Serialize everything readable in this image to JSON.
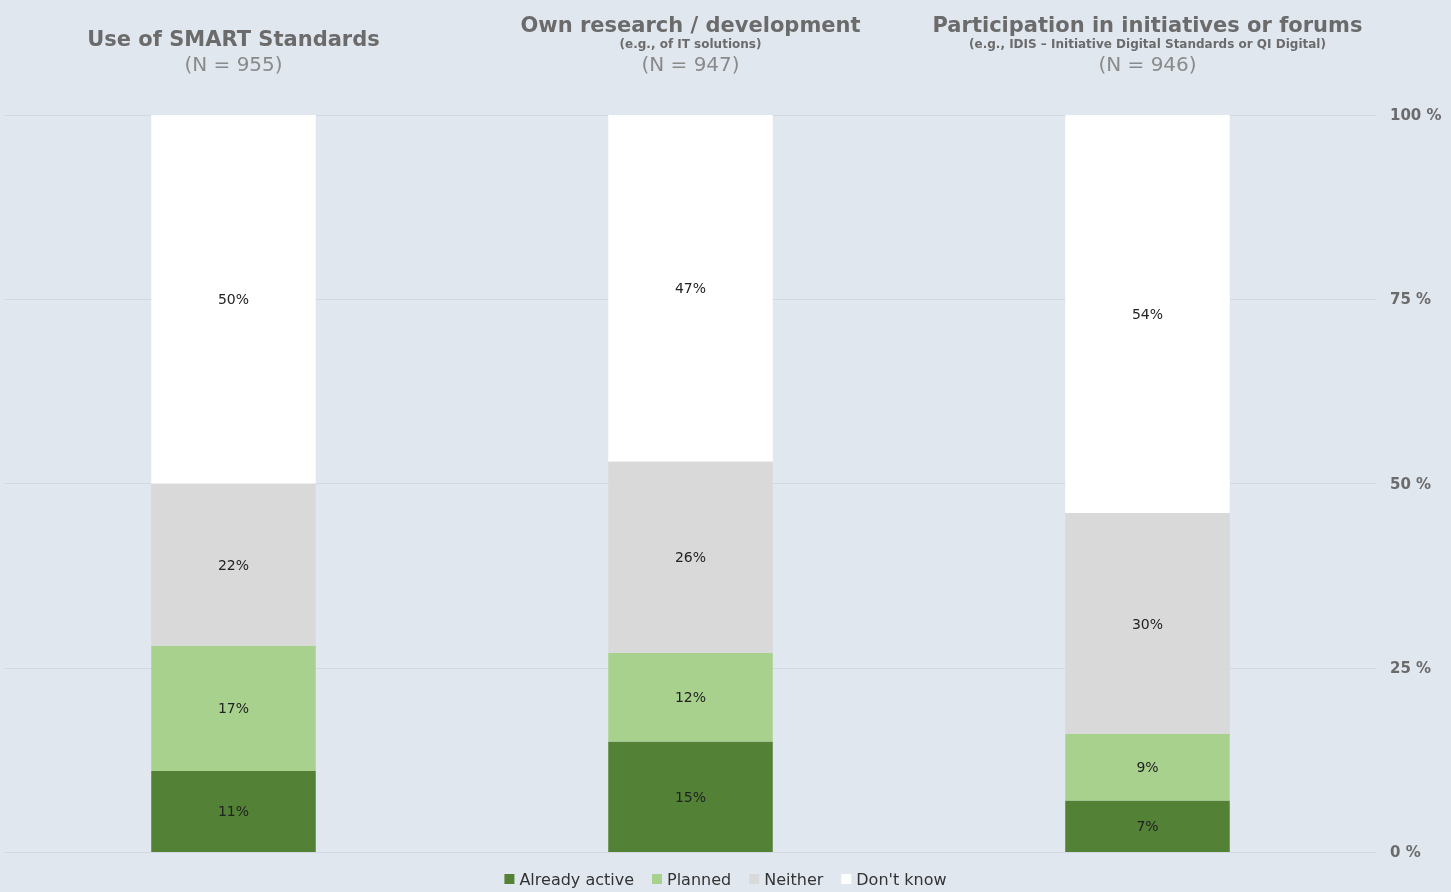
{
  "chart_data": {
    "type": "bar",
    "stacked": true,
    "categories": [
      "Use of SMART Standards\n(N = 955)",
      "Own research / development\n(e.g., of IT solutions)\n(N = 947)",
      "Participation in initiatives or forums\n(e.g., IDIS – Initiative Digital Standards or QI Digital)\n(N = 946)"
    ],
    "series": [
      {
        "name": "Already active",
        "color": "#538135",
        "values": [
          11,
          15,
          7
        ],
        "value_labels": [
          "11%",
          "15%",
          "7%"
        ]
      },
      {
        "name": "Planned",
        "color": "#a9d18e",
        "values": [
          17,
          12,
          9
        ],
        "value_labels": [
          "17%",
          "12%",
          "9%"
        ]
      },
      {
        "name": "Neither",
        "color": "#d9d9d9",
        "values": [
          22,
          26,
          30
        ],
        "value_labels": [
          "22%",
          "26%",
          "30%"
        ]
      },
      {
        "name": "Don't know",
        "color": "#ffffff",
        "values": [
          50,
          47,
          54
        ],
        "value_labels": [
          "50%",
          "47%",
          "54%"
        ]
      }
    ],
    "ylim": [
      0,
      100
    ],
    "yticks": [
      {
        "value": 0,
        "label": "0 %"
      },
      {
        "value": 25,
        "label": "25 %"
      },
      {
        "value": 50,
        "label": "50 %"
      },
      {
        "value": 75,
        "label": "75 %"
      },
      {
        "value": 100,
        "label": "100 %"
      }
    ],
    "grid": "y",
    "legend": "bottom"
  }
}
